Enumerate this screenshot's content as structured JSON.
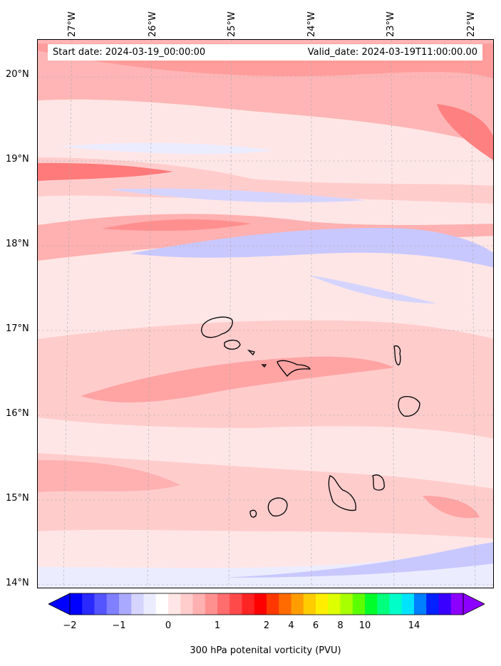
{
  "map": {
    "start_date": "Start date: 2024-03-19_00:00:00",
    "valid_date": "Valid_date: 2024-03-19T11:00:00.00",
    "lon_labels": [
      "27°W",
      "26°W",
      "25°W",
      "24°W",
      "23°W",
      "22°W"
    ],
    "lat_labels": [
      "20°N",
      "19°N",
      "18°N",
      "17°N",
      "16°N",
      "15°N",
      "14°N"
    ]
  },
  "colorbar": {
    "label": "300 hPa potenital vorticity (PVU)",
    "ticks": [
      "−2",
      "−1",
      "0",
      "1",
      "2",
      "4",
      "6",
      "8",
      "10",
      "14"
    ],
    "colors": [
      "#0000ff",
      "#2a2aff",
      "#5555ff",
      "#7f7fff",
      "#a9a9ff",
      "#d4d4ff",
      "#ececff",
      "#ffffff",
      "#ffe6e6",
      "#ffcccc",
      "#ffb0b0",
      "#ff9090",
      "#ff6d6d",
      "#ff4a4a",
      "#ff2424",
      "#ff0000",
      "#ff3800",
      "#ff6a00",
      "#ff9c00",
      "#ffcc00",
      "#ffee00",
      "#ddff00",
      "#a8ff00",
      "#5cff00",
      "#00ff2a",
      "#00ff7c",
      "#00ffc8",
      "#00e4ff",
      "#007fff",
      "#0022ff",
      "#3a00ff",
      "#8c00ff"
    ]
  }
}
